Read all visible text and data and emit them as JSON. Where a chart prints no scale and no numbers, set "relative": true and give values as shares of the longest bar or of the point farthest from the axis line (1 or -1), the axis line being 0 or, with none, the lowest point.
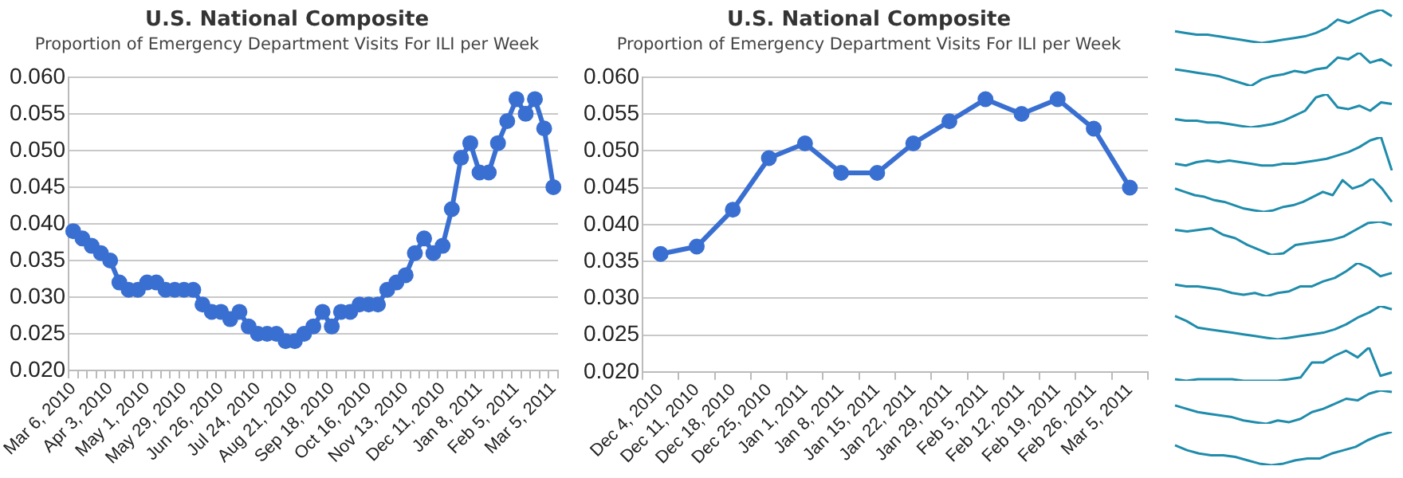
{
  "chart_data": [
    {
      "type": "line",
      "title": "U.S. National Composite",
      "subtitle": "Proportion of Emergency Department Visits For ILI per Week",
      "categories": [
        "Mar 6, 2010",
        null,
        null,
        null,
        "Apr 3, 2010",
        null,
        null,
        null,
        "May 1, 2010",
        null,
        null,
        null,
        "May 29, 2010",
        null,
        null,
        null,
        "Jun 26, 2010",
        null,
        null,
        null,
        "Jul 24, 2010",
        null,
        null,
        null,
        "Aug 21, 2010",
        null,
        null,
        null,
        "Sep 18, 2010",
        null,
        null,
        null,
        "Oct 16, 2010",
        null,
        null,
        null,
        "Nov 13, 2010",
        null,
        null,
        null,
        "Dec 11, 2010",
        null,
        null,
        null,
        "Jan 8, 2011",
        null,
        null,
        null,
        "Feb 5, 2011",
        null,
        null,
        null,
        "Mar 5, 2011"
      ],
      "series": [
        {
          "color": "#3a6fd2",
          "values": [
            0.039,
            0.038,
            0.037,
            0.036,
            0.035,
            0.032,
            0.031,
            0.031,
            0.032,
            0.032,
            0.031,
            0.031,
            0.031,
            0.031,
            0.029,
            0.028,
            0.028,
            0.027,
            0.028,
            0.026,
            0.025,
            0.025,
            0.025,
            0.024,
            0.024,
            0.025,
            0.026,
            0.028,
            0.026,
            0.028,
            0.028,
            0.029,
            0.029,
            0.029,
            0.031,
            0.032,
            0.033,
            0.036,
            0.038,
            0.036,
            0.037,
            0.042,
            0.049,
            0.051,
            0.047,
            0.047,
            0.051,
            0.054,
            0.057,
            0.055,
            0.057,
            0.053,
            0.045
          ]
        }
      ],
      "ylim": [
        0.02,
        0.06
      ],
      "yticks": [
        {
          "value": 0.02,
          "label": "0.020"
        },
        {
          "value": 0.025,
          "label": "0.025"
        },
        {
          "value": 0.03,
          "label": "0.030"
        },
        {
          "value": 0.035,
          "label": "0.035"
        },
        {
          "value": 0.04,
          "label": "0.040"
        },
        {
          "value": 0.045,
          "label": "0.045"
        },
        {
          "value": 0.05,
          "label": "0.050"
        },
        {
          "value": 0.055,
          "label": "0.055"
        },
        {
          "value": 0.06,
          "label": "0.060"
        }
      ],
      "grid": "y",
      "marker": "circle",
      "line_style": "solid"
    },
    {
      "type": "line",
      "title": "U.S. National Composite",
      "subtitle": "Proportion of Emergency Department Visits For ILI per Week",
      "categories": [
        "Dec 4, 2010",
        "Dec 11, 2010",
        "Dec 18, 2010",
        "Dec 25, 2010",
        "Jan 1, 2011",
        "Jan 8, 2011",
        "Jan 15, 2011",
        "Jan 22, 2011",
        "Jan 29, 2011",
        "Feb 5, 2011",
        "Feb 12, 2011",
        "Feb 19, 2011",
        "Feb 26, 2011",
        "Mar 5, 2011"
      ],
      "series": [
        {
          "color": "#3a6fd2",
          "values": [
            0.036,
            0.037,
            0.042,
            0.049,
            0.051,
            0.047,
            0.047,
            0.051,
            0.054,
            0.057,
            0.055,
            0.057,
            0.053,
            0.045
          ]
        }
      ],
      "ylim": [
        0.02,
        0.06
      ],
      "yticks": [
        {
          "value": 0.02,
          "label": "0.020"
        },
        {
          "value": 0.025,
          "label": "0.025"
        },
        {
          "value": 0.03,
          "label": "0.030"
        },
        {
          "value": 0.035,
          "label": "0.035"
        },
        {
          "value": 0.04,
          "label": "0.040"
        },
        {
          "value": 0.045,
          "label": "0.045"
        },
        {
          "value": 0.05,
          "label": "0.050"
        },
        {
          "value": 0.055,
          "label": "0.055"
        },
        {
          "value": 0.06,
          "label": "0.060"
        }
      ],
      "grid": "y",
      "marker": "circle",
      "line_style": "solid"
    },
    {
      "type": "line",
      "relative": true,
      "marker": "none",
      "categories": [
        null,
        null,
        null,
        null,
        null,
        null,
        null,
        null,
        null,
        null,
        null,
        null,
        null,
        null,
        null,
        null,
        null,
        null,
        null,
        null,
        null
      ],
      "series": [
        {
          "color": "#1f8cab",
          "values": [
            0.35,
            0.3,
            0.25,
            0.25,
            0.2,
            0.15,
            0.1,
            0.05,
            0,
            0.05,
            0.1,
            0.15,
            0.2,
            0.3,
            0.45,
            0.7,
            0.6,
            0.75,
            0.9,
            1,
            0.8
          ]
        }
      ]
    },
    {
      "type": "line",
      "relative": true,
      "marker": "none",
      "categories": [
        null,
        null,
        null,
        null,
        null,
        null,
        null,
        null,
        null,
        null,
        null,
        null,
        null,
        null,
        null,
        null,
        null,
        null,
        null,
        null,
        null
      ],
      "series": [
        {
          "color": "#1f8cab",
          "values": [
            0.5,
            0.45,
            0.4,
            0.35,
            0.3,
            0.2,
            0.1,
            0,
            0.2,
            0.3,
            0.35,
            0.45,
            0.4,
            0.5,
            0.55,
            0.85,
            0.8,
            1,
            0.7,
            0.8,
            0.6
          ]
        }
      ]
    },
    {
      "type": "line",
      "relative": true,
      "marker": "none",
      "categories": [
        null,
        null,
        null,
        null,
        null,
        null,
        null,
        null,
        null,
        null,
        null,
        null,
        null,
        null,
        null,
        null,
        null,
        null,
        null,
        null,
        null
      ],
      "series": [
        {
          "color": "#1f8cab",
          "values": [
            0.25,
            0.2,
            0.2,
            0.15,
            0.15,
            0.1,
            0.05,
            0,
            0.05,
            0.1,
            0.2,
            0.35,
            0.5,
            0.9,
            1,
            0.6,
            0.55,
            0.65,
            0.5,
            0.75,
            0.7
          ]
        }
      ]
    },
    {
      "type": "line",
      "relative": true,
      "marker": "none",
      "categories": [
        null,
        null,
        null,
        null,
        null,
        null,
        null,
        null,
        null,
        null,
        null,
        null,
        null,
        null,
        null,
        null,
        null,
        null,
        null,
        null,
        null
      ],
      "series": [
        {
          "color": "#1f8cab",
          "values": [
            0.2,
            0.15,
            0.25,
            0.3,
            0.25,
            0.3,
            0.25,
            0.2,
            0.15,
            0.15,
            0.2,
            0.2,
            0.25,
            0.3,
            0.35,
            0.45,
            0.55,
            0.7,
            0.9,
            1,
            0
          ]
        }
      ]
    },
    {
      "type": "line",
      "relative": true,
      "marker": "none",
      "categories": [
        null,
        null,
        null,
        null,
        null,
        null,
        null,
        null,
        null,
        null,
        null,
        null,
        null,
        null,
        null,
        null,
        null,
        null,
        null,
        null,
        null,
        null,
        null
      ],
      "series": [
        {
          "color": "#1f8cab",
          "values": [
            0.7,
            0.6,
            0.5,
            0.45,
            0.35,
            0.3,
            0.2,
            0.1,
            0.05,
            0,
            0.05,
            0.15,
            0.2,
            0.3,
            0.45,
            0.6,
            0.5,
            0.95,
            0.7,
            0.8,
            1,
            0.7,
            0.3
          ]
        }
      ]
    },
    {
      "type": "line",
      "relative": true,
      "marker": "none",
      "categories": [
        null,
        null,
        null,
        null,
        null,
        null,
        null,
        null,
        null,
        null,
        null,
        null,
        null,
        null,
        null,
        null,
        null,
        null,
        null
      ],
      "series": [
        {
          "color": "#1f8cab",
          "values": [
            0.75,
            0.7,
            0.75,
            0.8,
            0.6,
            0.5,
            0.3,
            0.15,
            0,
            0.05,
            0.3,
            0.35,
            0.4,
            0.45,
            0.55,
            0.75,
            0.95,
            1,
            0.9
          ]
        }
      ]
    },
    {
      "type": "line",
      "relative": true,
      "marker": "none",
      "categories": [
        null,
        null,
        null,
        null,
        null,
        null,
        null,
        null,
        null,
        null,
        null,
        null,
        null,
        null,
        null,
        null,
        null,
        null,
        null,
        null
      ],
      "series": [
        {
          "color": "#1f8cab",
          "values": [
            0.35,
            0.3,
            0.3,
            0.25,
            0.2,
            0.1,
            0.05,
            0.1,
            0,
            0.1,
            0.15,
            0.3,
            0.3,
            0.45,
            0.55,
            0.75,
            1,
            0.85,
            0.6,
            0.7
          ]
        }
      ]
    },
    {
      "type": "line",
      "relative": true,
      "marker": "none",
      "categories": [
        null,
        null,
        null,
        null,
        null,
        null,
        null,
        null,
        null,
        null,
        null,
        null,
        null,
        null,
        null,
        null,
        null,
        null,
        null,
        null
      ],
      "series": [
        {
          "color": "#1f8cab",
          "values": [
            0.7,
            0.55,
            0.35,
            0.3,
            0.25,
            0.2,
            0.15,
            0.1,
            0.05,
            0,
            0.05,
            0.1,
            0.15,
            0.2,
            0.3,
            0.45,
            0.65,
            0.8,
            1,
            0.9
          ]
        }
      ]
    },
    {
      "type": "line",
      "relative": true,
      "marker": "none",
      "categories": [
        null,
        null,
        null,
        null,
        null,
        null,
        null,
        null,
        null,
        null,
        null,
        null,
        null,
        null,
        null,
        null,
        null,
        null,
        null,
        null
      ],
      "series": [
        {
          "color": "#1f8cab",
          "values": [
            0.05,
            0,
            0.05,
            0.05,
            0.05,
            0.05,
            0,
            0,
            0,
            0,
            0.05,
            0.1,
            0.55,
            0.55,
            0.75,
            0.9,
            0.7,
            1,
            0.15,
            0.25
          ]
        }
      ]
    },
    {
      "type": "line",
      "relative": true,
      "marker": "none",
      "categories": [
        null,
        null,
        null,
        null,
        null,
        null,
        null,
        null,
        null,
        null,
        null,
        null,
        null,
        null,
        null,
        null,
        null,
        null,
        null,
        null
      ],
      "series": [
        {
          "color": "#1f8cab",
          "values": [
            0.55,
            0.45,
            0.35,
            0.3,
            0.25,
            0.2,
            0.1,
            0.05,
            0,
            0.1,
            0.05,
            0.15,
            0.35,
            0.45,
            0.6,
            0.75,
            0.7,
            0.9,
            1,
            0.95
          ]
        }
      ]
    },
    {
      "type": "line",
      "relative": true,
      "marker": "none",
      "categories": [
        null,
        null,
        null,
        null,
        null,
        null,
        null,
        null,
        null,
        null,
        null,
        null,
        null,
        null,
        null,
        null,
        null,
        null,
        null
      ],
      "series": [
        {
          "color": "#1f8cab",
          "values": [
            0.6,
            0.45,
            0.35,
            0.3,
            0.3,
            0.25,
            0.15,
            0.05,
            0,
            0.05,
            0.15,
            0.2,
            0.2,
            0.35,
            0.45,
            0.55,
            0.75,
            0.9,
            1
          ]
        }
      ]
    }
  ]
}
